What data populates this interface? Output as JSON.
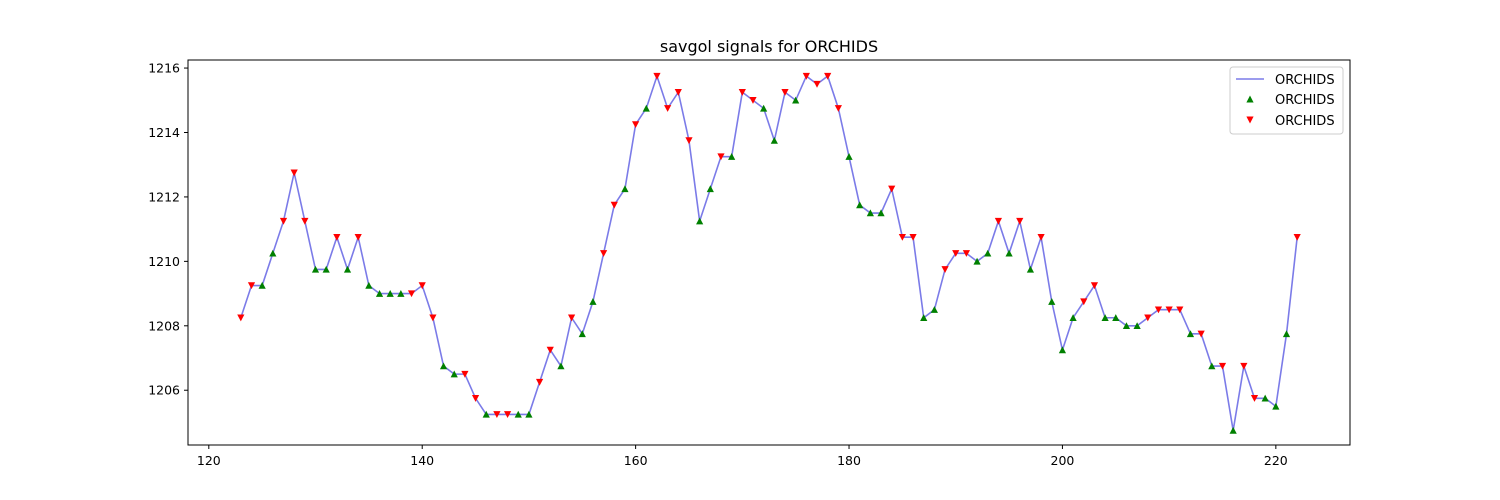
{
  "chart_data": {
    "type": "line",
    "title": "savgol signals for ORCHIDS",
    "xlabel": "",
    "ylabel": "",
    "xlim": [
      118.05,
      226.95
    ],
    "ylim": [
      1204.3,
      1216.25
    ],
    "xticks": [
      120,
      140,
      160,
      180,
      200,
      220
    ],
    "yticks": [
      1206,
      1208,
      1210,
      1212,
      1214,
      1216
    ],
    "grid": false,
    "legend_position": "top-right",
    "colors": {
      "line": "#7b7be8",
      "up_marker": "#008000",
      "down_marker": "#ff0000"
    },
    "legend": [
      {
        "label": "ORCHIDS",
        "kind": "line"
      },
      {
        "label": "ORCHIDS",
        "kind": "up"
      },
      {
        "label": "ORCHIDS",
        "kind": "down"
      }
    ],
    "x": [
      123,
      124,
      125,
      126,
      127,
      128,
      129,
      130,
      131,
      132,
      133,
      134,
      135,
      136,
      137,
      138,
      139,
      140,
      141,
      142,
      143,
      144,
      145,
      146,
      147,
      148,
      149,
      150,
      151,
      152,
      153,
      154,
      155,
      156,
      157,
      158,
      159,
      160,
      161,
      162,
      163,
      164,
      165,
      166,
      167,
      168,
      169,
      170,
      171,
      172,
      173,
      174,
      175,
      176,
      177,
      178,
      179,
      180,
      181,
      182,
      183,
      184,
      185,
      186,
      187,
      188,
      189,
      190,
      191,
      192,
      193,
      194,
      195,
      196,
      197,
      198,
      199,
      200,
      201,
      202,
      203,
      204,
      205,
      206,
      207,
      208,
      209,
      210,
      211,
      212,
      213,
      214,
      215,
      216,
      217,
      218,
      219,
      220,
      221,
      222
    ],
    "y": [
      1208.25,
      1209.25,
      1209.25,
      1210.25,
      1211.25,
      1212.75,
      1211.25,
      1209.75,
      1209.75,
      1210.75,
      1209.75,
      1210.75,
      1209.25,
      1209.0,
      1209.0,
      1209.0,
      1209.0,
      1209.25,
      1208.25,
      1206.75,
      1206.5,
      1206.5,
      1205.75,
      1205.25,
      1205.25,
      1205.25,
      1205.25,
      1205.25,
      1206.25,
      1207.25,
      1206.75,
      1208.25,
      1207.75,
      1208.75,
      1210.25,
      1211.75,
      1212.25,
      1214.25,
      1214.75,
      1215.75,
      1214.75,
      1215.25,
      1213.75,
      1211.25,
      1212.25,
      1213.25,
      1213.25,
      1215.25,
      1215.0,
      1214.75,
      1213.75,
      1215.25,
      1215.0,
      1215.75,
      1215.5,
      1215.75,
      1214.75,
      1213.25,
      1211.75,
      1211.5,
      1211.5,
      1212.25,
      1210.75,
      1210.75,
      1208.25,
      1208.5,
      1209.75,
      1210.25,
      1210.25,
      1210.0,
      1210.25,
      1211.25,
      1210.25,
      1211.25,
      1209.75,
      1210.75,
      1208.75,
      1207.25,
      1208.25,
      1208.75,
      1209.25,
      1208.25,
      1208.25,
      1208.0,
      1208.0,
      1208.25,
      1208.5,
      1208.5,
      1208.5,
      1207.75,
      1207.75,
      1206.75,
      1206.75,
      1204.75,
      1206.75,
      1205.75,
      1205.75,
      1205.5,
      1207.75,
      1210.75
    ],
    "signals": [
      "down",
      "down",
      "up",
      "up",
      "down",
      "down",
      "down",
      "up",
      "up",
      "down",
      "up",
      "down",
      "up",
      "up",
      "up",
      "up",
      "down",
      "down",
      "down",
      "up",
      "up",
      "down",
      "down",
      "up",
      "down",
      "down",
      "up",
      "up",
      "down",
      "down",
      "up",
      "down",
      "up",
      "up",
      "down",
      "down",
      "up",
      "down",
      "up",
      "down",
      "down",
      "down",
      "down",
      "up",
      "up",
      "down",
      "up",
      "down",
      "down",
      "up",
      "up",
      "down",
      "up",
      "down",
      "down",
      "down",
      "down",
      "up",
      "up",
      "up",
      "up",
      "down",
      "down",
      "down",
      "up",
      "up",
      "down",
      "down",
      "down",
      "up",
      "up",
      "down",
      "up",
      "down",
      "up",
      "down",
      "up",
      "up",
      "up",
      "down",
      "down",
      "up",
      "up",
      "up",
      "up",
      "down",
      "down",
      "down",
      "down",
      "up",
      "down",
      "up",
      "down",
      "up",
      "down",
      "down",
      "up",
      "up",
      "up",
      "down"
    ]
  }
}
